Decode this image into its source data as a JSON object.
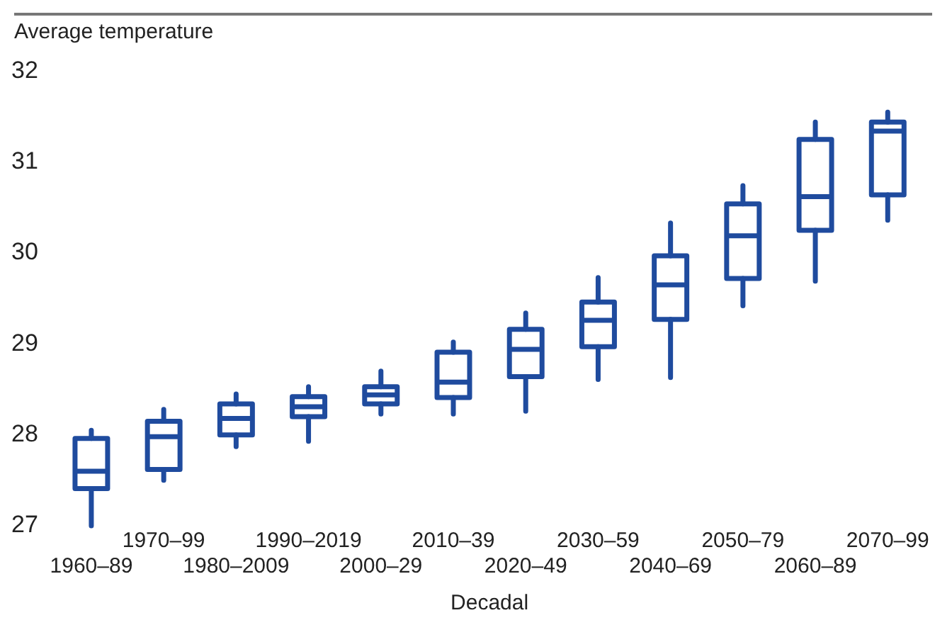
{
  "chart_data": {
    "type": "box",
    "ylabel": "Average temperature",
    "xlabel": "Decadal",
    "categories": [
      "1960–89",
      "1970–99",
      "1980–2009",
      "1990–2019",
      "2000–29",
      "2010–39",
      "2020–49",
      "2030–59",
      "2040–69",
      "2050–79",
      "2060–89",
      "2070–99"
    ],
    "color": "#1f4b9e",
    "ylim": [
      27,
      32
    ],
    "yticks": [
      27,
      28,
      29,
      30,
      31,
      32
    ],
    "grid": false,
    "legend": false,
    "boxes": [
      {
        "low": 27.0,
        "q1": 27.41,
        "median": 27.6,
        "q3": 27.96,
        "high": 28.05
      },
      {
        "low": 27.5,
        "q1": 27.62,
        "median": 27.98,
        "q3": 28.15,
        "high": 28.28
      },
      {
        "low": 27.87,
        "q1": 28.0,
        "median": 28.18,
        "q3": 28.34,
        "high": 28.45
      },
      {
        "low": 27.93,
        "q1": 28.2,
        "median": 28.31,
        "q3": 28.42,
        "high": 28.53
      },
      {
        "low": 28.23,
        "q1": 28.34,
        "median": 28.44,
        "q3": 28.53,
        "high": 28.7
      },
      {
        "low": 28.23,
        "q1": 28.41,
        "median": 28.58,
        "q3": 28.91,
        "high": 29.02
      },
      {
        "low": 28.26,
        "q1": 28.64,
        "median": 28.94,
        "q3": 29.16,
        "high": 29.34
      },
      {
        "low": 28.61,
        "q1": 28.97,
        "median": 29.26,
        "q3": 29.46,
        "high": 29.73
      },
      {
        "low": 28.63,
        "q1": 29.27,
        "median": 29.65,
        "q3": 29.97,
        "high": 30.33
      },
      {
        "low": 29.42,
        "q1": 29.72,
        "median": 30.19,
        "q3": 30.54,
        "high": 30.74
      },
      {
        "low": 29.69,
        "q1": 30.25,
        "median": 30.62,
        "q3": 31.25,
        "high": 31.44
      },
      {
        "low": 30.36,
        "q1": 30.64,
        "median": 31.34,
        "q3": 31.44,
        "high": 31.55
      }
    ]
  }
}
